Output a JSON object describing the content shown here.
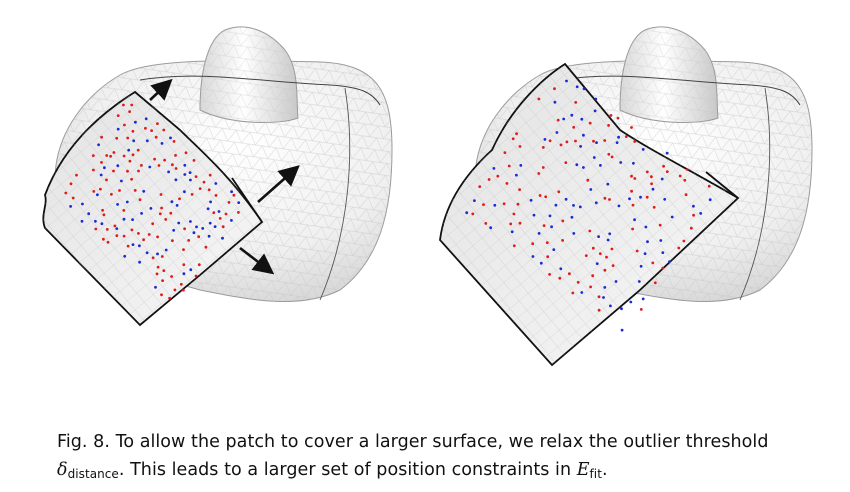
{
  "figure": {
    "label": "Fig. 8.",
    "panels": [
      {
        "name": "before-relaxing-threshold",
        "arrows": 3
      },
      {
        "name": "after-relaxing-threshold",
        "arrows": 0
      }
    ],
    "point_colors": {
      "inlier": "#1a2ad6",
      "outlier": "#e01b1b"
    }
  },
  "caption": {
    "text_1": "To allow the patch to cover a larger surface, we relax the outlier threshold ",
    "delta_symbol": "δ",
    "delta_subscript": "distance",
    "text_2": ". This leads to a larger set of position constraints in ",
    "energy_symbol": "E",
    "energy_subscript": "fit",
    "text_3": "."
  }
}
